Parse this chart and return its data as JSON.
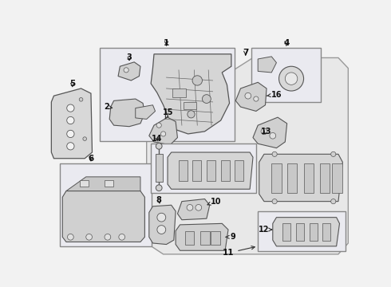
{
  "bg_color": "#f2f2f2",
  "fig_bg": "#f2f2f2",
  "part_fill": "#e8e8e8",
  "part_edge": "#444444",
  "box_fill": "#e8eaf0",
  "box_edge": "#888888",
  "oct_fill": "#eaeaea",
  "oct_edge": "#aaaaaa",
  "label_color": "#111111",
  "arrow_color": "#333333"
}
